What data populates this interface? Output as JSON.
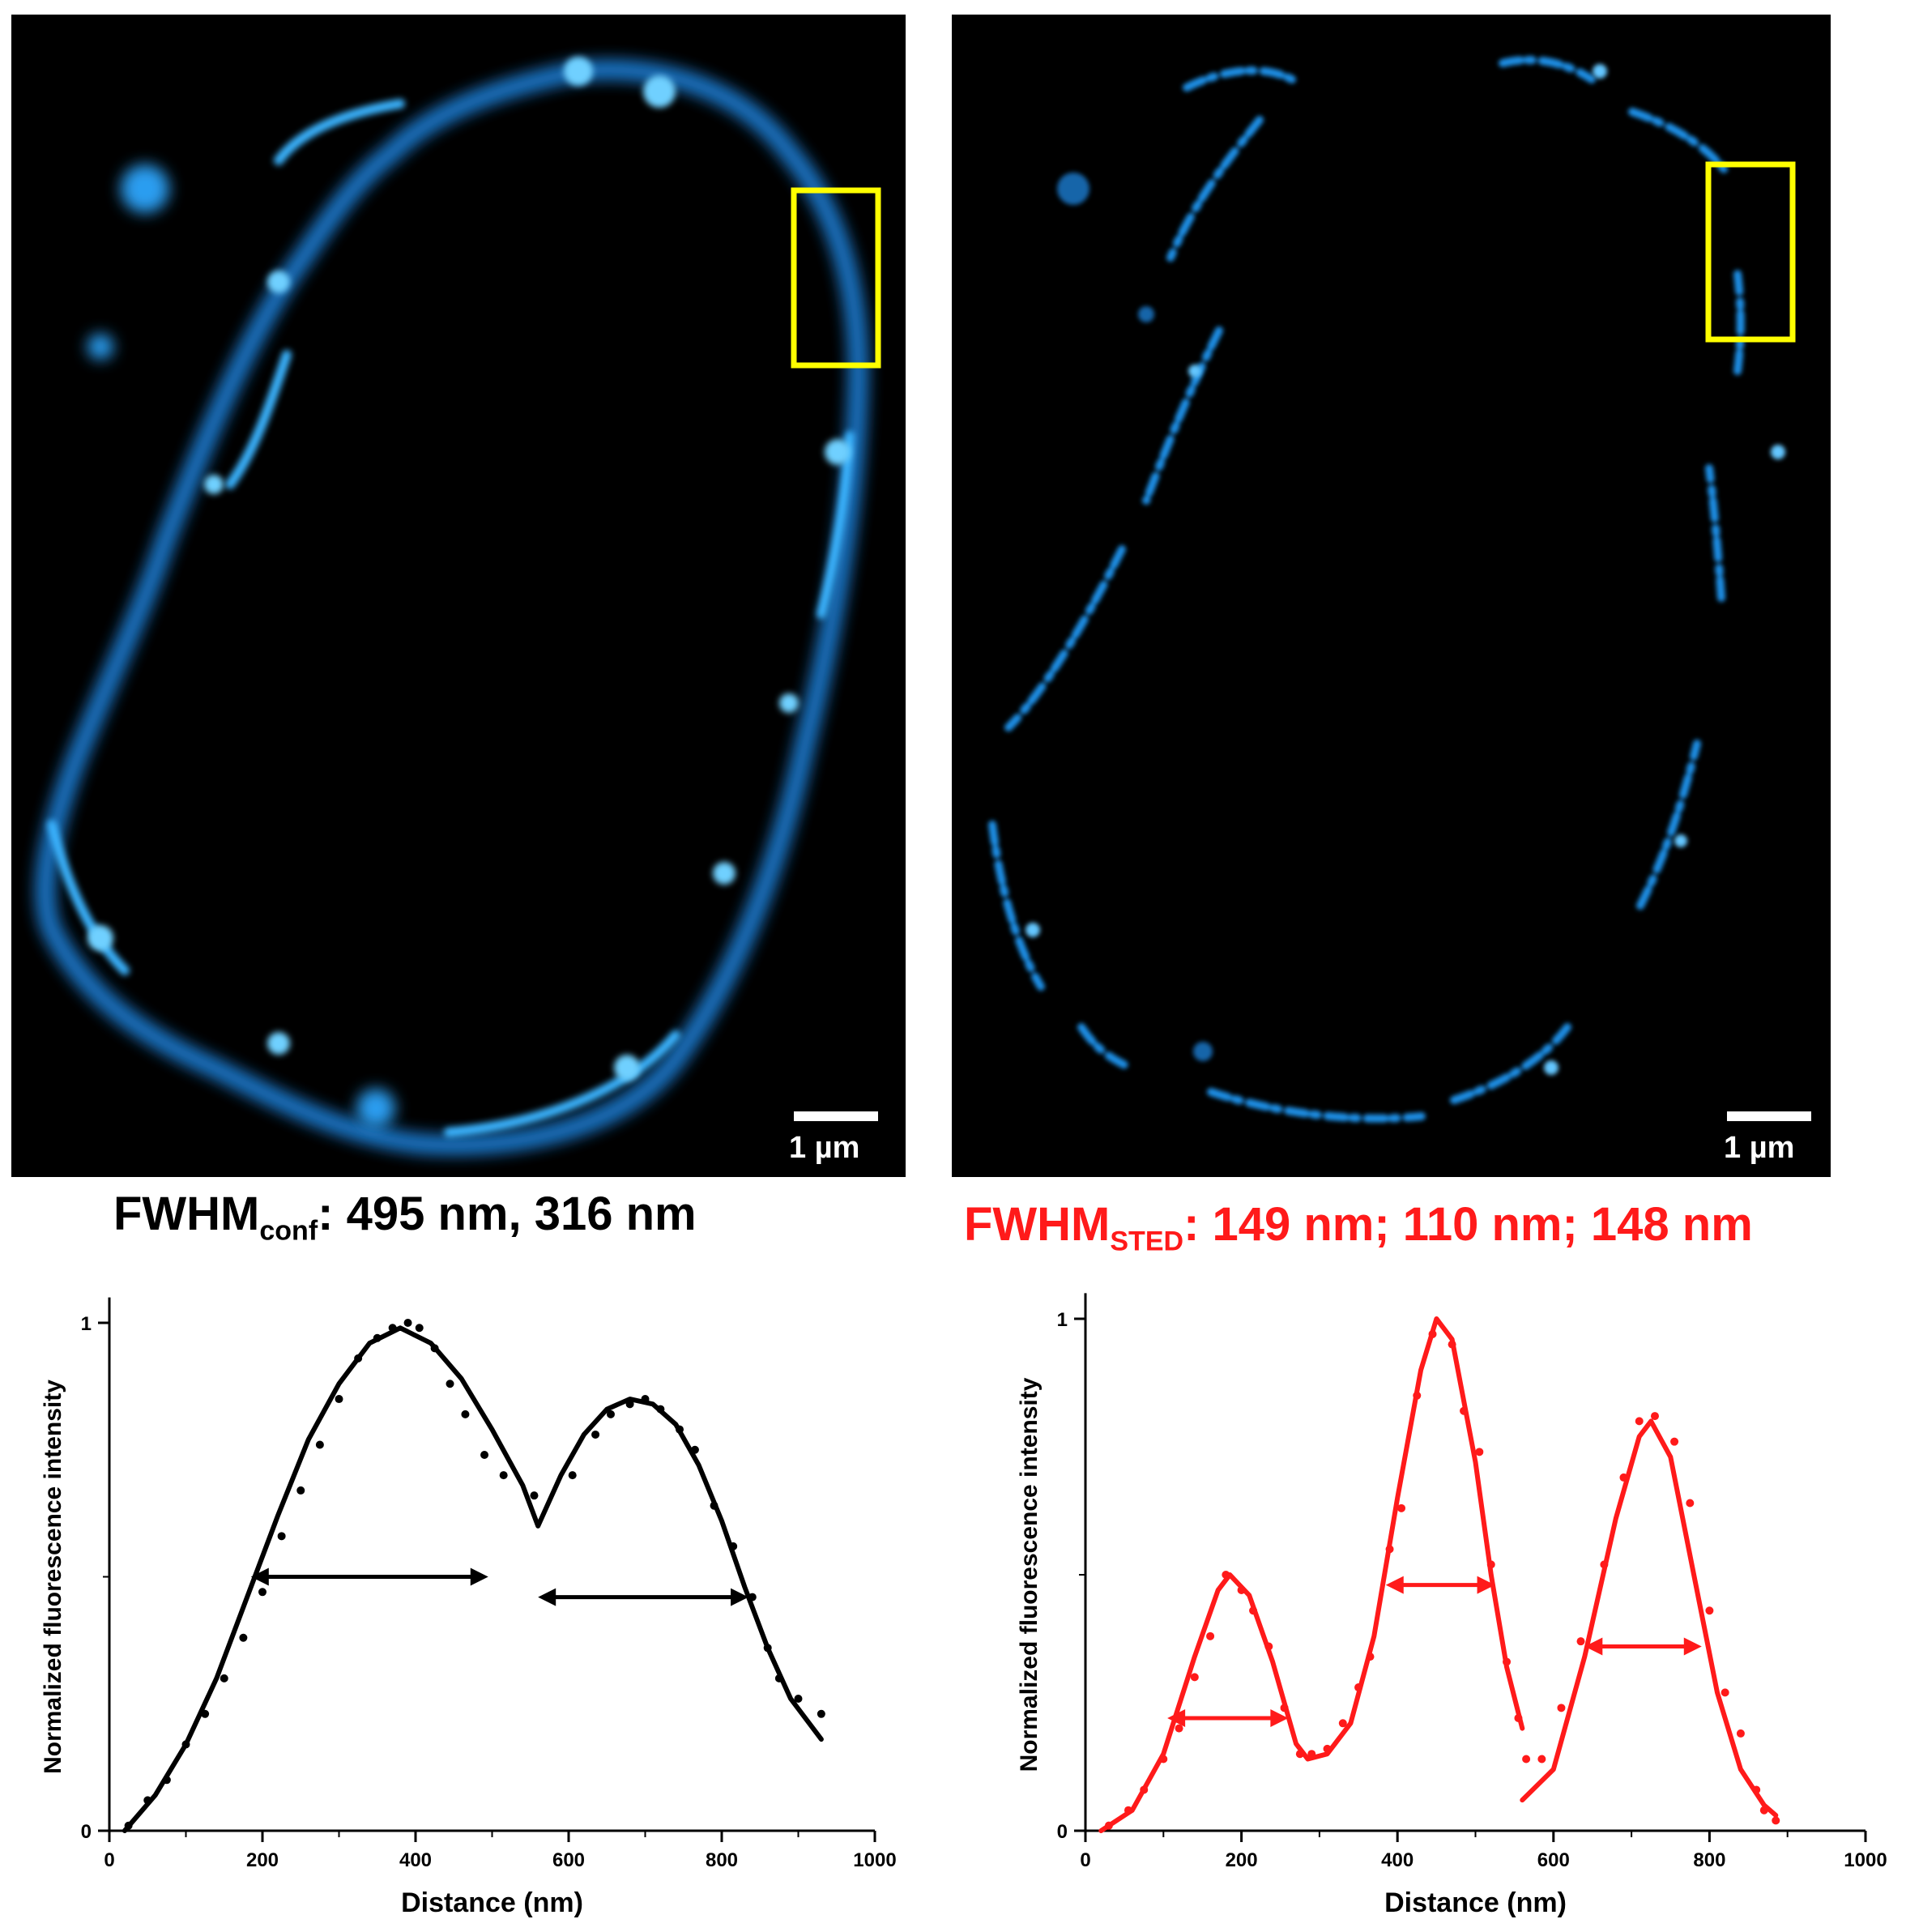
{
  "panels": {
    "confocal": {
      "scale_label": "1 µm"
    },
    "sted": {
      "scale_label": "1 µm"
    }
  },
  "fwhm": {
    "conf": {
      "prefix": "FWHM",
      "sub": "conf",
      "values": ": 495 nm, 316 nm"
    },
    "sted": {
      "prefix": "FWHM",
      "sub": "STED",
      "values": ": 149 nm; 110 nm; 148 nm"
    }
  },
  "colors": {
    "conf": "#000000",
    "sted": "#ff1a1a",
    "cyan": "#2aa8ff",
    "roi": "#ffff00"
  },
  "chart_data": [
    {
      "type": "line",
      "xlabel": "Distance (nm)",
      "ylabel": "Normalized fluorescence intensity",
      "xlim": [
        0,
        1000
      ],
      "ylim": [
        0,
        1.05
      ],
      "xticks": [
        0,
        200,
        400,
        600,
        800,
        1000
      ],
      "yticks": [
        0,
        1
      ],
      "color": "#000000",
      "fit_segments": [
        [
          [
            20,
            0
          ],
          [
            60,
            0.07
          ],
          [
            100,
            0.17
          ],
          [
            140,
            0.3
          ],
          [
            180,
            0.46
          ],
          [
            220,
            0.62
          ],
          [
            260,
            0.77
          ],
          [
            300,
            0.88
          ],
          [
            340,
            0.96
          ],
          [
            380,
            0.99
          ],
          [
            420,
            0.96
          ],
          [
            460,
            0.89
          ],
          [
            500,
            0.79
          ],
          [
            540,
            0.68
          ],
          [
            560,
            0.6
          ],
          [
            590,
            0.7
          ],
          [
            620,
            0.78
          ],
          [
            650,
            0.83
          ],
          [
            680,
            0.85
          ],
          [
            710,
            0.84
          ],
          [
            740,
            0.8
          ],
          [
            770,
            0.72
          ],
          [
            800,
            0.61
          ],
          [
            830,
            0.48
          ],
          [
            860,
            0.36
          ],
          [
            890,
            0.26
          ],
          [
            930,
            0.18
          ]
        ]
      ],
      "points": [
        [
          25,
          0.01
        ],
        [
          50,
          0.06
        ],
        [
          75,
          0.1
        ],
        [
          100,
          0.17
        ],
        [
          125,
          0.23
        ],
        [
          150,
          0.3
        ],
        [
          175,
          0.38
        ],
        [
          200,
          0.47
        ],
        [
          225,
          0.58
        ],
        [
          250,
          0.67
        ],
        [
          275,
          0.76
        ],
        [
          300,
          0.85
        ],
        [
          325,
          0.93
        ],
        [
          350,
          0.97
        ],
        [
          370,
          0.99
        ],
        [
          390,
          1.0
        ],
        [
          405,
          0.99
        ],
        [
          425,
          0.95
        ],
        [
          445,
          0.88
        ],
        [
          465,
          0.82
        ],
        [
          490,
          0.74
        ],
        [
          515,
          0.7
        ],
        [
          555,
          0.66
        ],
        [
          605,
          0.7
        ],
        [
          635,
          0.78
        ],
        [
          655,
          0.82
        ],
        [
          680,
          0.84
        ],
        [
          700,
          0.85
        ],
        [
          720,
          0.83
        ],
        [
          745,
          0.79
        ],
        [
          765,
          0.75
        ],
        [
          790,
          0.64
        ],
        [
          815,
          0.56
        ],
        [
          840,
          0.46
        ],
        [
          860,
          0.36
        ],
        [
          875,
          0.3
        ],
        [
          900,
          0.26
        ],
        [
          930,
          0.23
        ]
      ],
      "fwhm_arrows": [
        [
          185,
          495,
          0.5
        ],
        [
          560,
          835,
          0.46
        ]
      ]
    },
    {
      "type": "line",
      "xlabel": "Distance (nm)",
      "ylabel": "Normalized fluorescence intensity",
      "xlim": [
        0,
        1000
      ],
      "ylim": [
        0,
        1.05
      ],
      "xticks": [
        0,
        200,
        400,
        600,
        800,
        1000
      ],
      "yticks": [
        0,
        1
      ],
      "color": "#ff1a1a",
      "fit_segments": [
        [
          [
            20,
            0
          ],
          [
            60,
            0.04
          ],
          [
            100,
            0.15
          ],
          [
            140,
            0.34
          ],
          [
            170,
            0.47
          ],
          [
            185,
            0.5
          ],
          [
            210,
            0.46
          ],
          [
            240,
            0.33
          ],
          [
            270,
            0.17
          ],
          [
            285,
            0.14
          ],
          [
            310,
            0.15
          ],
          [
            340,
            0.21
          ],
          [
            370,
            0.38
          ],
          [
            400,
            0.65
          ],
          [
            430,
            0.9
          ],
          [
            450,
            1.0
          ],
          [
            470,
            0.96
          ],
          [
            500,
            0.72
          ],
          [
            520,
            0.5
          ],
          [
            540,
            0.32
          ],
          [
            560,
            0.2
          ]
        ],
        [
          [
            560,
            0.06
          ],
          [
            600,
            0.12
          ],
          [
            640,
            0.34
          ],
          [
            680,
            0.61
          ],
          [
            710,
            0.77
          ],
          [
            725,
            0.8
          ],
          [
            750,
            0.73
          ],
          [
            780,
            0.5
          ],
          [
            810,
            0.27
          ],
          [
            840,
            0.12
          ],
          [
            870,
            0.05
          ],
          [
            885,
            0.03
          ]
        ]
      ],
      "points": [
        [
          30,
          0.01
        ],
        [
          55,
          0.04
        ],
        [
          75,
          0.08
        ],
        [
          100,
          0.14
        ],
        [
          120,
          0.2
        ],
        [
          140,
          0.3
        ],
        [
          160,
          0.38
        ],
        [
          180,
          0.5
        ],
        [
          200,
          0.47
        ],
        [
          215,
          0.43
        ],
        [
          235,
          0.36
        ],
        [
          255,
          0.24
        ],
        [
          275,
          0.15
        ],
        [
          290,
          0.15
        ],
        [
          310,
          0.16
        ],
        [
          330,
          0.21
        ],
        [
          350,
          0.28
        ],
        [
          365,
          0.34
        ],
        [
          390,
          0.55
        ],
        [
          405,
          0.63
        ],
        [
          425,
          0.85
        ],
        [
          445,
          0.97
        ],
        [
          470,
          0.95
        ],
        [
          485,
          0.82
        ],
        [
          505,
          0.74
        ],
        [
          520,
          0.52
        ],
        [
          540,
          0.33
        ],
        [
          555,
          0.22
        ],
        [
          565,
          0.14
        ],
        [
          585,
          0.14
        ],
        [
          610,
          0.24
        ],
        [
          635,
          0.37
        ],
        [
          665,
          0.52
        ],
        [
          690,
          0.69
        ],
        [
          710,
          0.8
        ],
        [
          730,
          0.81
        ],
        [
          755,
          0.76
        ],
        [
          775,
          0.64
        ],
        [
          800,
          0.43
        ],
        [
          820,
          0.27
        ],
        [
          840,
          0.19
        ],
        [
          860,
          0.08
        ],
        [
          870,
          0.04
        ],
        [
          885,
          0.02
        ]
      ],
      "fwhm_arrows": [
        [
          105,
          260,
          0.22
        ],
        [
          385,
          525,
          0.48
        ],
        [
          640,
          790,
          0.36
        ]
      ]
    }
  ]
}
